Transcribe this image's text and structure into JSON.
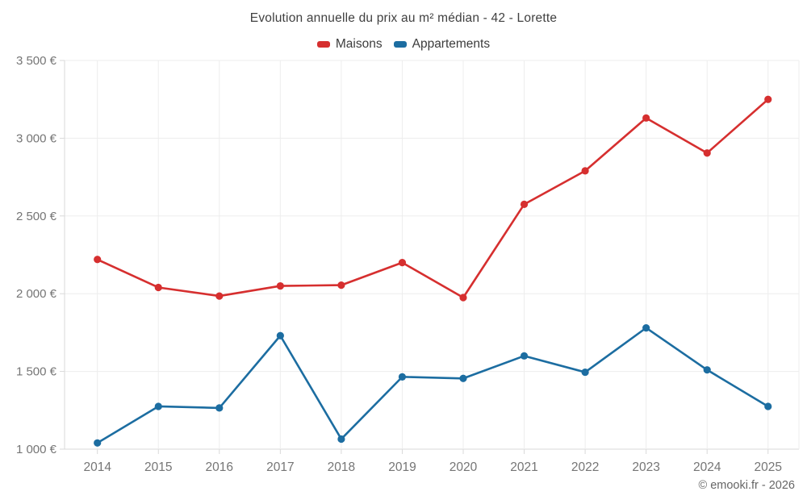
{
  "title": "Evolution annuelle du prix au m² médian - 42 - Lorette",
  "legend": [
    {
      "label": "Maisons",
      "color": "#d62f2f"
    },
    {
      "label": "Appartements",
      "color": "#1c6da1"
    }
  ],
  "footer": "© emooki.fr - 2026",
  "colors": {
    "maisons": "#d62f2f",
    "appartements": "#1c6da1",
    "gridline": "#ededed",
    "axis_line": "#d9d9d9",
    "tick_text": "#757575"
  },
  "chart_data": {
    "type": "line",
    "title": "Evolution annuelle du prix au m² médian - 42 - Lorette",
    "x": [
      2014,
      2015,
      2016,
      2017,
      2018,
      2019,
      2020,
      2021,
      2022,
      2023,
      2024,
      2025
    ],
    "series": [
      {
        "name": "Maisons",
        "color": "#d62f2f",
        "values": [
          2220,
          2040,
          1985,
          2050,
          2055,
          2200,
          1975,
          2575,
          2790,
          3130,
          2905,
          3250
        ]
      },
      {
        "name": "Appartements",
        "color": "#1c6da1",
        "values": [
          1040,
          1275,
          1265,
          1730,
          1065,
          1465,
          1455,
          1600,
          1495,
          1780,
          1510,
          1275
        ]
      }
    ],
    "xlabel": "",
    "ylabel": "",
    "ylim": [
      1000,
      3500
    ],
    "yticks": [
      1000,
      1500,
      2000,
      2500,
      3000,
      3500
    ],
    "ytick_suffix": " €",
    "grid": true,
    "legend_position": "top"
  }
}
